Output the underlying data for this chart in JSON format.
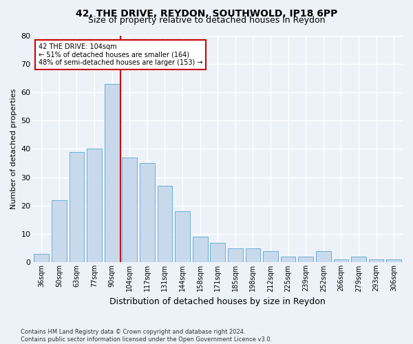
{
  "title1": "42, THE DRIVE, REYDON, SOUTHWOLD, IP18 6PP",
  "title2": "Size of property relative to detached houses in Reydon",
  "xlabel": "Distribution of detached houses by size in Reydon",
  "ylabel": "Number of detached properties",
  "categories": [
    "36sqm",
    "50sqm",
    "63sqm",
    "77sqm",
    "90sqm",
    "104sqm",
    "117sqm",
    "131sqm",
    "144sqm",
    "158sqm",
    "171sqm",
    "185sqm",
    "198sqm",
    "212sqm",
    "225sqm",
    "239sqm",
    "252sqm",
    "266sqm",
    "279sqm",
    "293sqm",
    "306sqm"
  ],
  "values": [
    3,
    22,
    39,
    40,
    63,
    37,
    35,
    27,
    18,
    9,
    7,
    5,
    5,
    4,
    2,
    2,
    4,
    1,
    2,
    1,
    1
  ],
  "bar_color": "#c8d9ec",
  "bar_edge_color": "#6aaed6",
  "vline_color": "#cc0000",
  "vline_index": 5,
  "annotation_line1": "42 THE DRIVE: 104sqm",
  "annotation_line2": "← 51% of detached houses are smaller (164)",
  "annotation_line3": "48% of semi-detached houses are larger (153) →",
  "annotation_box_color": "#ffffff",
  "annotation_box_edge": "#cc0000",
  "ylim": [
    0,
    80
  ],
  "yticks": [
    0,
    10,
    20,
    30,
    40,
    50,
    60,
    70,
    80
  ],
  "footnote1": "Contains HM Land Registry data © Crown copyright and database right 2024.",
  "footnote2": "Contains public sector information licensed under the Open Government Licence v3.0.",
  "bg_color": "#edf2f9",
  "grid_color": "#ffffff",
  "title1_fontsize": 10,
  "title2_fontsize": 9,
  "ylabel_fontsize": 8,
  "xlabel_fontsize": 9,
  "tick_fontsize": 7,
  "ytick_fontsize": 8,
  "annot_fontsize": 7,
  "footnote_fontsize": 6
}
